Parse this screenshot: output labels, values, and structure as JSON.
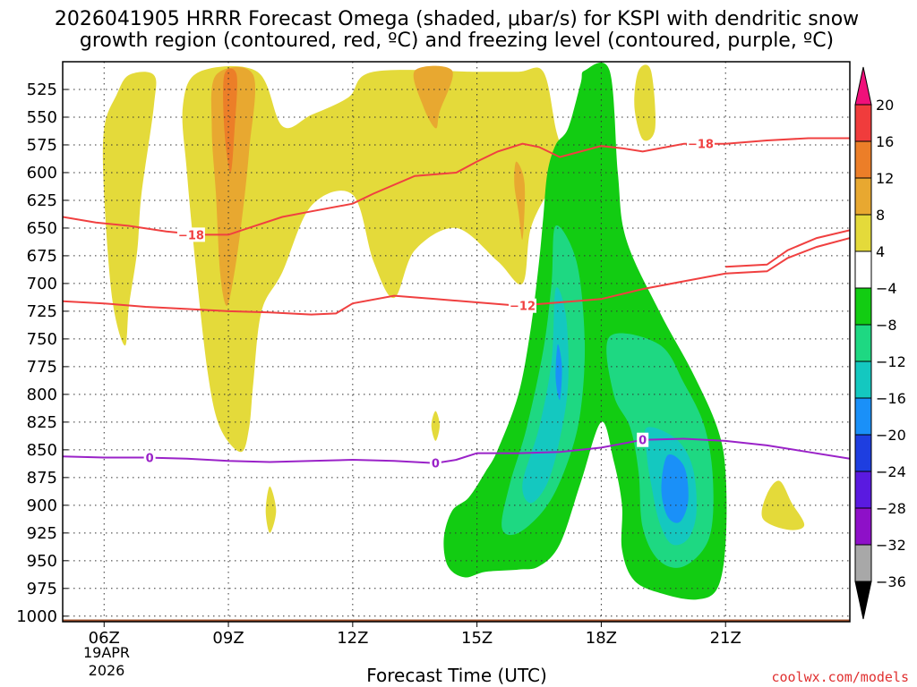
{
  "chart_data": {
    "type": "contour-timeheight",
    "title_line1": "2026041905 HRRR Forecast Omega (shaded, μbar/s) for KSPI with dendritic snow",
    "title_line2": "growth region (contoured, red, ºC) and freezing level (contoured, purple, ºC)",
    "xlabel": "Forecast Time (UTC)",
    "credit": "coolwx.com/models",
    "x_range_hours": [
      5,
      24
    ],
    "x_ticks": [
      {
        "hour": 6,
        "label": "06Z"
      },
      {
        "hour": 9,
        "label": "09Z"
      },
      {
        "hour": 12,
        "label": "12Z"
      },
      {
        "hour": 15,
        "label": "15Z"
      },
      {
        "hour": 18,
        "label": "18Z"
      },
      {
        "hour": 21,
        "label": "21Z"
      }
    ],
    "date_labels": [
      "19APR",
      "2026"
    ],
    "y_levels_mb": [
      525,
      550,
      575,
      600,
      625,
      650,
      675,
      700,
      725,
      750,
      775,
      800,
      825,
      850,
      875,
      900,
      925,
      950,
      975,
      1000
    ],
    "y_range_mb": [
      500,
      1005
    ],
    "colorbar": {
      "levels": [
        "20",
        "16",
        "12",
        "8",
        "4",
        "−4",
        "−8",
        "−12",
        "−16",
        "−20",
        "−24",
        "−28",
        "−32",
        "−36"
      ],
      "bins": [
        {
          "color": "#f03c3c"
        },
        {
          "color": "#ec7e28"
        },
        {
          "color": "#e8a830"
        },
        {
          "color": "#e4da3a"
        },
        {
          "color": "#ffffff"
        },
        {
          "color": "#12cc12"
        },
        {
          "color": "#1ed882"
        },
        {
          "color": "#14c8c0"
        },
        {
          "color": "#1a90f8"
        },
        {
          "color": "#1e3ee0"
        },
        {
          "color": "#5a1ae0"
        },
        {
          "color": "#8e10c8"
        },
        {
          "color": "#a8a8a8"
        }
      ],
      "top_color": "#f0107a",
      "bottom_color": "#000000"
    },
    "isotherms_dgz": [
      {
        "label": "−18",
        "color": "#f04040",
        "points": [
          [
            5.0,
            640
          ],
          [
            5.8,
            645
          ],
          [
            6.6,
            648
          ],
          [
            7.5,
            653
          ],
          [
            8.3,
            656
          ],
          [
            9.0,
            656
          ],
          [
            9.4,
            651
          ],
          [
            10.3,
            640
          ],
          [
            11.0,
            635
          ],
          [
            12.0,
            628
          ],
          [
            12.5,
            619
          ],
          [
            13.5,
            603
          ],
          [
            14.5,
            600
          ],
          [
            15.0,
            590
          ],
          [
            15.5,
            581
          ],
          [
            16.1,
            574
          ],
          [
            16.5,
            577
          ],
          [
            17.0,
            586
          ],
          [
            17.5,
            581
          ],
          [
            18.0,
            576
          ],
          [
            18.5,
            578
          ],
          [
            19.0,
            581
          ],
          [
            20.0,
            574
          ],
          [
            21.0,
            574
          ],
          [
            22.0,
            571
          ],
          [
            23.0,
            569
          ],
          [
            24.0,
            569
          ]
        ],
        "label_at": [
          8.1,
          656
        ]
      },
      {
        "label": "−18",
        "color": "#f04040",
        "points": [
          [
            21.0,
            685
          ],
          [
            22.0,
            683
          ],
          [
            22.5,
            670
          ],
          [
            23.2,
            659
          ],
          [
            24.0,
            652
          ]
        ]
      },
      {
        "label": "−12",
        "color": "#f04040",
        "points": [
          [
            5.0,
            716
          ],
          [
            6.0,
            718
          ],
          [
            7.0,
            721
          ],
          [
            8.0,
            723
          ],
          [
            9.0,
            725
          ],
          [
            10.0,
            726
          ],
          [
            11.0,
            728
          ],
          [
            11.6,
            727
          ],
          [
            12.0,
            718
          ],
          [
            13.0,
            711
          ],
          [
            14.0,
            714
          ],
          [
            15.0,
            717
          ],
          [
            16.0,
            720
          ],
          [
            17.0,
            717
          ],
          [
            18.0,
            714
          ],
          [
            19.0,
            705
          ],
          [
            20.0,
            698
          ],
          [
            21.0,
            691
          ],
          [
            22.0,
            689
          ],
          [
            22.5,
            677
          ],
          [
            23.2,
            667
          ],
          [
            24.0,
            659
          ]
        ],
        "label_at": [
          16.1,
          720
        ]
      }
    ],
    "freezing_level": {
      "label": "0",
      "color": "#9a22c8",
      "points": [
        [
          5.0,
          856
        ],
        [
          6.0,
          857
        ],
        [
          7.0,
          857
        ],
        [
          8.0,
          858
        ],
        [
          9.0,
          860
        ],
        [
          10.0,
          861
        ],
        [
          11.0,
          860
        ],
        [
          12.0,
          859
        ],
        [
          13.0,
          860
        ],
        [
          14.0,
          862
        ],
        [
          14.5,
          859
        ],
        [
          15.0,
          853
        ],
        [
          16.0,
          853
        ],
        [
          17.0,
          852
        ],
        [
          18.0,
          848
        ],
        [
          19.0,
          841
        ],
        [
          20.0,
          840
        ],
        [
          21.0,
          842
        ],
        [
          22.0,
          846
        ],
        [
          23.0,
          852
        ],
        [
          24.0,
          858
        ]
      ],
      "labels_at": [
        [
          7.1,
          857
        ],
        [
          14.0,
          862
        ],
        [
          19.0,
          841
        ]
      ]
    },
    "omega_regions": [
      {
        "level": "4 to 8",
        "color": "#e4da3a",
        "points": [
          [
            6.6,
            512
          ],
          [
            7.2,
            512
          ],
          [
            7.2,
            540
          ],
          [
            6.9,
            620
          ],
          [
            6.8,
            670
          ],
          [
            6.6,
            720
          ],
          [
            6.5,
            756
          ],
          [
            6.2,
            715
          ],
          [
            6.0,
            620
          ],
          [
            6.0,
            560
          ],
          [
            6.3,
            530
          ]
        ]
      },
      {
        "level": "4 to 8",
        "color": "#e4da3a",
        "points": [
          [
            8.3,
            509
          ],
          [
            9.7,
            509
          ],
          [
            10.3,
            558
          ],
          [
            11.0,
            548
          ],
          [
            11.9,
            532
          ],
          [
            12.5,
            509
          ],
          [
            15.0,
            509
          ],
          [
            16.0,
            509
          ],
          [
            16.6,
            509
          ],
          [
            16.9,
            560
          ],
          [
            17.1,
            592
          ],
          [
            16.8,
            612
          ],
          [
            16.3,
            650
          ],
          [
            16.1,
            700
          ],
          [
            15.5,
            680
          ],
          [
            14.5,
            650
          ],
          [
            13.5,
            670
          ],
          [
            13.0,
            713
          ],
          [
            12.5,
            680
          ],
          [
            12.0,
            620
          ],
          [
            11.0,
            630
          ],
          [
            10.3,
            690
          ],
          [
            9.8,
            725
          ],
          [
            9.6,
            790
          ],
          [
            9.5,
            830
          ],
          [
            9.3,
            852
          ],
          [
            8.8,
            830
          ],
          [
            8.5,
            780
          ],
          [
            8.2,
            680
          ],
          [
            8.0,
            600
          ],
          [
            7.9,
            540
          ]
        ]
      },
      {
        "level": "4 to 8",
        "color": "#e4da3a",
        "points": [
          [
            18.9,
            508
          ],
          [
            19.2,
            508
          ],
          [
            19.3,
            560
          ],
          [
            19.0,
            570
          ],
          [
            18.8,
            540
          ]
        ]
      },
      {
        "level": "4 to 8",
        "color": "#e4da3a",
        "points": [
          [
            22.3,
            878
          ],
          [
            22.6,
            898
          ],
          [
            22.9,
            918
          ],
          [
            22.5,
            922
          ],
          [
            21.9,
            912
          ],
          [
            22.0,
            890
          ]
        ]
      },
      {
        "level": "4 to 8",
        "color": "#e4da3a",
        "points": [
          [
            14.0,
            815
          ],
          [
            14.1,
            828
          ],
          [
            14.0,
            842
          ],
          [
            13.9,
            828
          ]
        ]
      },
      {
        "level": "4 to 8",
        "color": "#e4da3a",
        "points": [
          [
            10.0,
            883
          ],
          [
            10.15,
            905
          ],
          [
            10.0,
            925
          ],
          [
            9.9,
            905
          ]
        ]
      },
      {
        "level": "8 to 12",
        "color": "#e8a830",
        "points": [
          [
            8.7,
            512
          ],
          [
            9.6,
            512
          ],
          [
            9.5,
            580
          ],
          [
            9.3,
            650
          ],
          [
            9.1,
            700
          ],
          [
            8.95,
            720
          ],
          [
            8.8,
            690
          ],
          [
            8.7,
            620
          ],
          [
            8.6,
            560
          ]
        ]
      },
      {
        "level": "8 to 12",
        "color": "#e8a830",
        "points": [
          [
            13.5,
            508
          ],
          [
            14.4,
            508
          ],
          [
            14.1,
            545
          ],
          [
            14.0,
            560
          ],
          [
            13.7,
            540
          ]
        ]
      },
      {
        "level": "8 to 12",
        "color": "#e8a830",
        "points": [
          [
            15.95,
            590
          ],
          [
            16.15,
            610
          ],
          [
            16.1,
            660
          ],
          [
            16.0,
            635
          ],
          [
            15.9,
            610
          ]
        ]
      },
      {
        "level": "12 to 16",
        "color": "#ec7e28",
        "points": [
          [
            8.9,
            512
          ],
          [
            9.2,
            512
          ],
          [
            9.15,
            560
          ],
          [
            9.05,
            600
          ],
          [
            8.9,
            560
          ]
        ]
      },
      {
        "level": "-4 to -8",
        "color": "#12cc12",
        "points": [
          [
            17.6,
            508
          ],
          [
            18.2,
            508
          ],
          [
            18.4,
            600
          ],
          [
            18.6,
            660
          ],
          [
            19.4,
            725
          ],
          [
            20.2,
            780
          ],
          [
            20.8,
            830
          ],
          [
            21.0,
            870
          ],
          [
            21.0,
            935
          ],
          [
            20.8,
            975
          ],
          [
            20.3,
            985
          ],
          [
            19.5,
            980
          ],
          [
            18.8,
            968
          ],
          [
            18.5,
            940
          ],
          [
            18.5,
            900
          ],
          [
            18.3,
            860
          ],
          [
            18.0,
            825
          ],
          [
            17.5,
            880
          ],
          [
            17.0,
            935
          ],
          [
            16.5,
            955
          ],
          [
            16.0,
            958
          ],
          [
            15.2,
            960
          ],
          [
            14.7,
            965
          ],
          [
            14.3,
            955
          ],
          [
            14.2,
            930
          ],
          [
            14.4,
            905
          ],
          [
            14.8,
            893
          ],
          [
            15.2,
            870
          ],
          [
            15.5,
            850
          ],
          [
            16.0,
            800
          ],
          [
            16.3,
            740
          ],
          [
            16.5,
            680
          ],
          [
            16.6,
            640
          ],
          [
            16.7,
            600
          ],
          [
            16.9,
            575
          ],
          [
            17.2,
            560
          ],
          [
            17.5,
            520
          ]
        ]
      },
      {
        "level": "-8 to -12",
        "color": "#1ed882",
        "points": [
          [
            16.9,
            648
          ],
          [
            17.4,
            680
          ],
          [
            17.6,
            750
          ],
          [
            17.5,
            815
          ],
          [
            17.2,
            860
          ],
          [
            16.7,
            900
          ],
          [
            16.0,
            925
          ],
          [
            15.6,
            920
          ],
          [
            15.8,
            880
          ],
          [
            16.2,
            830
          ],
          [
            16.6,
            760
          ],
          [
            16.8,
            700
          ]
        ]
      },
      {
        "level": "-8 to -12",
        "color": "#1ed882",
        "points": [
          [
            18.2,
            748
          ],
          [
            19.4,
            755
          ],
          [
            20.0,
            790
          ],
          [
            20.5,
            830
          ],
          [
            20.7,
            880
          ],
          [
            20.6,
            930
          ],
          [
            20.0,
            955
          ],
          [
            19.4,
            950
          ],
          [
            19.0,
            920
          ],
          [
            18.9,
            870
          ],
          [
            18.7,
            830
          ],
          [
            18.3,
            800
          ]
        ]
      },
      {
        "level": "-12 to -16",
        "color": "#14c8c0",
        "points": [
          [
            16.9,
            705
          ],
          [
            17.15,
            730
          ],
          [
            17.2,
            790
          ],
          [
            17.0,
            840
          ],
          [
            16.7,
            880
          ],
          [
            16.3,
            898
          ],
          [
            16.1,
            880
          ],
          [
            16.5,
            830
          ],
          [
            16.8,
            770
          ]
        ]
      },
      {
        "level": "-12 to -16",
        "color": "#14c8c0",
        "points": [
          [
            19.1,
            830
          ],
          [
            19.8,
            840
          ],
          [
            20.2,
            865
          ],
          [
            20.3,
            905
          ],
          [
            20.1,
            930
          ],
          [
            19.7,
            935
          ],
          [
            19.4,
            915
          ],
          [
            19.2,
            880
          ],
          [
            19.1,
            855
          ]
        ]
      },
      {
        "level": "-16 to -20",
        "color": "#1a90f8",
        "points": [
          [
            16.95,
            755
          ],
          [
            17.05,
            775
          ],
          [
            17.0,
            805
          ],
          [
            16.9,
            785
          ]
        ]
      },
      {
        "level": "-16 to -20",
        "color": "#1a90f8",
        "points": [
          [
            19.6,
            855
          ],
          [
            20.0,
            865
          ],
          [
            20.1,
            895
          ],
          [
            19.9,
            915
          ],
          [
            19.6,
            910
          ],
          [
            19.45,
            885
          ]
        ]
      }
    ],
    "ground_color": "#a0522d"
  }
}
